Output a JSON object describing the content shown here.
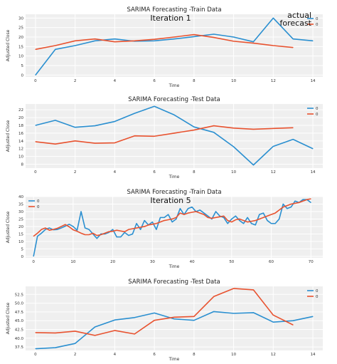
{
  "colors": {
    "actual": "#2a8fd0",
    "forecast": "#e8522f",
    "panel_bg": "#efefef",
    "grid": "#ffffff"
  },
  "chart_data": [
    {
      "type": "line",
      "title": "SARIMA Forecasting -Train Data",
      "annotation": "Iteration 1",
      "annotation_legend": [
        "actual",
        "forecast"
      ],
      "xlabel": "Time",
      "ylabel": "Adjusted Close",
      "xlim": [
        -0.5,
        14.5
      ],
      "ylim": [
        -1,
        32
      ],
      "xticks": [
        0,
        2,
        4,
        6,
        8,
        10,
        12,
        14
      ],
      "yticks": [
        0,
        5,
        10,
        15,
        20,
        25,
        30
      ],
      "grid": true,
      "legend": "top-right",
      "series": [
        {
          "name": "0",
          "color_key": "actual",
          "x": [
            0,
            1,
            2,
            3,
            4,
            5,
            6,
            7,
            8,
            9,
            10,
            11,
            12,
            13,
            14
          ],
          "values": [
            0,
            13.5,
            15.5,
            18,
            19,
            17.8,
            18,
            19,
            20.2,
            21.5,
            20,
            17.5,
            30,
            19,
            18
          ]
        },
        {
          "name": "0",
          "color_key": "forecast",
          "x": [
            0,
            1,
            2,
            3,
            4,
            5,
            6,
            7,
            8,
            9,
            10,
            11,
            12,
            13
          ],
          "values": [
            13.5,
            15.5,
            18,
            19,
            17.5,
            18,
            18.8,
            20,
            21.3,
            19.8,
            17.8,
            16.8,
            15.5,
            14.5
          ]
        }
      ]
    },
    {
      "type": "line",
      "title": "SARIMA Forecasting -Test Data",
      "xlabel": "Time",
      "ylabel": "Adjusted Close",
      "xlim": [
        -0.5,
        14.5
      ],
      "ylim": [
        7,
        23.5
      ],
      "xticks": [
        0,
        2,
        4,
        6,
        8,
        10,
        12,
        14
      ],
      "yticks": [
        8,
        10,
        12,
        14,
        16,
        18,
        20,
        22
      ],
      "grid": true,
      "legend": "top-right",
      "series": [
        {
          "name": "0",
          "color_key": "actual",
          "x": [
            0,
            1,
            2,
            3,
            4,
            5,
            6,
            7,
            8,
            9,
            10,
            11,
            12,
            13,
            14
          ],
          "values": [
            18,
            19.3,
            17.5,
            17.9,
            19,
            21.1,
            22.9,
            20.7,
            17.6,
            16.2,
            12.5,
            7.8,
            12.6,
            14.4,
            12
          ]
        },
        {
          "name": "0",
          "color_key": "forecast",
          "x": [
            0,
            1,
            2,
            3,
            4,
            5,
            6,
            7,
            8,
            9,
            10,
            11,
            12,
            13
          ],
          "values": [
            13.8,
            13.2,
            14,
            13.4,
            13.5,
            15.3,
            15.2,
            16,
            16.8,
            17.9,
            17.3,
            17,
            17.2,
            17.4
          ]
        }
      ]
    },
    {
      "type": "line",
      "title": "SARIMA Forecasting -Train Data",
      "annotation": "Iteration 5",
      "xlabel": "Time",
      "ylabel": "Adjusted Close",
      "xlim": [
        -2,
        73
      ],
      "ylim": [
        -1,
        40
      ],
      "xticks": [
        0,
        10,
        20,
        30,
        40,
        50,
        60,
        70
      ],
      "yticks": [
        0,
        5,
        10,
        15,
        20,
        25,
        30,
        35,
        40
      ],
      "grid": true,
      "legend": "top-left",
      "series": [
        {
          "name": "0",
          "color_key": "actual",
          "x": [
            0,
            1,
            2,
            3,
            4,
            5,
            6,
            7,
            8,
            9,
            10,
            11,
            12,
            13,
            14,
            15,
            16,
            17,
            18,
            19,
            20,
            21,
            22,
            23,
            24,
            25,
            26,
            27,
            28,
            29,
            30,
            31,
            32,
            33,
            34,
            35,
            36,
            37,
            38,
            39,
            40,
            41,
            42,
            43,
            44,
            45,
            46,
            47,
            48,
            49,
            50,
            51,
            52,
            53,
            54,
            55,
            56,
            57,
            58,
            59,
            60,
            61,
            62,
            63,
            64,
            65,
            66,
            67,
            68,
            69,
            70
          ],
          "values": [
            0,
            13.5,
            15.5,
            18,
            19,
            17.8,
            18,
            19,
            20.2,
            21.5,
            20,
            17.5,
            30,
            19,
            18,
            15,
            12,
            15,
            15,
            16,
            18,
            13,
            13,
            16,
            14,
            15,
            22,
            18,
            24,
            21,
            23,
            18,
            26,
            26,
            28,
            23,
            25,
            32,
            28,
            32,
            33,
            30,
            31,
            29,
            27,
            25,
            30,
            27,
            26,
            22,
            25,
            27,
            24,
            22,
            26,
            22,
            21,
            28,
            29,
            24,
            22,
            22,
            25,
            35,
            32,
            33,
            37,
            36,
            38,
            38,
            36
          ]
        },
        {
          "name": "0",
          "color_key": "forecast",
          "x": [
            0,
            1,
            2,
            3,
            4,
            5,
            6,
            7,
            8,
            9,
            10,
            11,
            12,
            13,
            14,
            15,
            16,
            17,
            18,
            19,
            20,
            21,
            22,
            23,
            24,
            25,
            26,
            27,
            28,
            29,
            30,
            31,
            32,
            33,
            34,
            35,
            36,
            37,
            38,
            39,
            40,
            41,
            42,
            43,
            44,
            45,
            46,
            47,
            48,
            49,
            50,
            51,
            52,
            53,
            54,
            55,
            56,
            57,
            58,
            59,
            60,
            61,
            62,
            63,
            64,
            65,
            66,
            67,
            68,
            69,
            70
          ],
          "values": [
            13.5,
            15.5,
            18,
            19,
            17.5,
            18,
            18.8,
            20,
            21.3,
            19.8,
            17.8,
            16.8,
            15.5,
            14.5,
            14.5,
            15.5,
            14,
            14.5,
            15.5,
            16.5,
            16.8,
            17.5,
            17,
            16.5,
            18,
            18.5,
            19,
            19.5,
            20,
            21,
            21.5,
            22,
            23,
            24,
            24.5,
            25,
            26,
            29,
            28,
            29,
            29.5,
            30,
            29,
            28,
            26,
            25.5,
            26,
            26.5,
            27,
            24,
            23,
            24.5,
            25,
            24,
            23,
            23.5,
            24,
            25,
            26,
            27,
            28,
            29,
            31,
            33,
            34,
            35,
            35.5,
            36,
            37,
            38,
            38.5
          ]
        }
      ]
    },
    {
      "type": "line",
      "title": "SARIMA Forecasting -Test Data",
      "xlabel": "Time",
      "ylabel": "Adjusted Close",
      "xlim": [
        -0.5,
        14.5
      ],
      "ylim": [
        36.5,
        54.8
      ],
      "xticks": [
        0,
        2,
        4,
        6,
        8,
        10,
        12,
        14
      ],
      "yticks": [
        37.5,
        40.0,
        42.5,
        45.0,
        47.5,
        50.0,
        52.5
      ],
      "grid": true,
      "legend": "top-right",
      "series": [
        {
          "name": "0",
          "color_key": "actual",
          "x": [
            0,
            1,
            2,
            3,
            4,
            5,
            6,
            7,
            8,
            9,
            10,
            11,
            12,
            13,
            14
          ],
          "values": [
            37,
            37.3,
            38.5,
            43.2,
            45.2,
            45.9,
            47.2,
            45.5,
            45.1,
            47.6,
            47.1,
            47.3,
            44.6,
            45.0,
            46.2
          ]
        },
        {
          "name": "0",
          "color_key": "forecast",
          "x": [
            0,
            1,
            2,
            3,
            4,
            5,
            6,
            7,
            8,
            9,
            10,
            11,
            12,
            13
          ],
          "values": [
            41.6,
            41.5,
            42,
            40.8,
            42.2,
            41.2,
            45.1,
            46,
            46.2,
            51.9,
            54.2,
            53.8,
            46.6,
            43.8
          ]
        }
      ]
    }
  ]
}
